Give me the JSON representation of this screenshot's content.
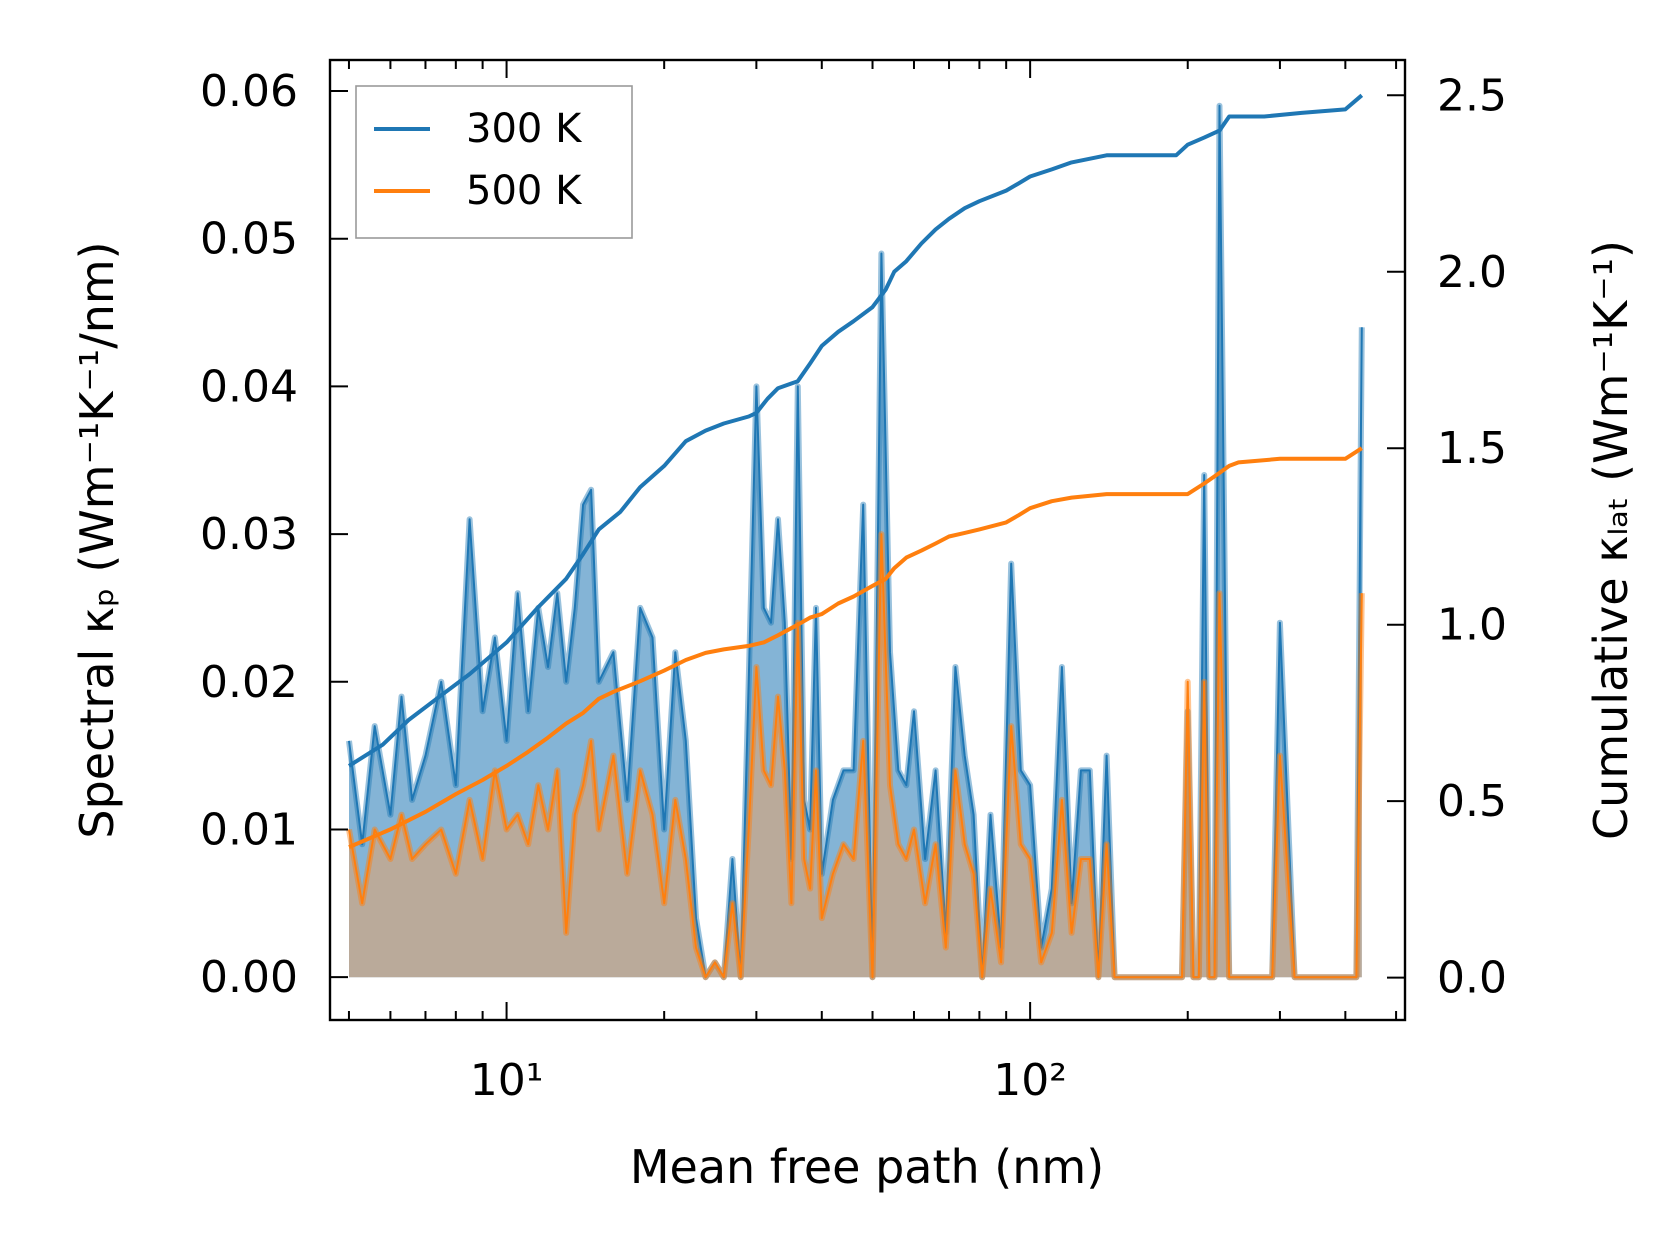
{
  "chart_data": {
    "type": "line",
    "xlabel": "Mean free path (nm)",
    "ylabel_left": "Spectral κₚ (Wm⁻¹K⁻¹/nm)",
    "ylabel_right": "Cumulative κₗₐₜ (Wm⁻¹K⁻¹)",
    "x_scale": "log",
    "xlim": [
      4.6,
      520
    ],
    "ylim_left": [
      -0.0029,
      0.0621
    ],
    "ylim_right": [
      -0.12,
      2.6
    ],
    "x_ticks": [
      {
        "value": 10,
        "label": "10¹"
      },
      {
        "value": 100,
        "label": "10²"
      }
    ],
    "y_ticks_left": [
      "0.00",
      "0.01",
      "0.02",
      "0.03",
      "0.04",
      "0.05",
      "0.06"
    ],
    "y_ticks_right": [
      "0.0",
      "0.5",
      "1.0",
      "1.5",
      "2.0",
      "2.5"
    ],
    "legend": {
      "location": "top-left",
      "entries": [
        "300 K",
        "500 K"
      ]
    },
    "series": [
      {
        "name": "300 K",
        "color": "#1f77b4",
        "fill_color": "#1f77b4",
        "axis": "right",
        "kind": "cumulative",
        "x": [
          5,
          5.8,
          6.5,
          7.5,
          8.5,
          10,
          11.5,
          13,
          14,
          15,
          16.5,
          18,
          20,
          22,
          24,
          26,
          29,
          30,
          31.5,
          33,
          36,
          38,
          40,
          43,
          46,
          50,
          53,
          55,
          58,
          62,
          66,
          70,
          75,
          80,
          90,
          95,
          100,
          110,
          120,
          140,
          190,
          200,
          215,
          230,
          240,
          280,
          330,
          400,
          430
        ],
        "values": [
          0.6,
          0.66,
          0.73,
          0.8,
          0.86,
          0.95,
          1.05,
          1.13,
          1.2,
          1.27,
          1.32,
          1.39,
          1.45,
          1.52,
          1.55,
          1.57,
          1.59,
          1.6,
          1.64,
          1.67,
          1.69,
          1.74,
          1.79,
          1.83,
          1.86,
          1.9,
          1.95,
          2.0,
          2.03,
          2.08,
          2.12,
          2.15,
          2.18,
          2.2,
          2.23,
          2.25,
          2.27,
          2.29,
          2.31,
          2.33,
          2.33,
          2.36,
          2.38,
          2.4,
          2.44,
          2.44,
          2.45,
          2.46,
          2.5
        ]
      },
      {
        "name": "300 K",
        "color": "#1f77b4",
        "fill_color": "#1f77b4",
        "axis": "left",
        "kind": "spectral",
        "x": [
          5,
          5.3,
          5.6,
          6,
          6.3,
          6.6,
          7,
          7.5,
          8,
          8.5,
          9,
          9.5,
          10,
          10.5,
          11,
          11.5,
          12,
          12.5,
          13,
          13.5,
          14,
          14.5,
          15,
          16,
          17,
          18,
          19,
          20,
          21,
          22,
          23,
          24,
          25,
          26,
          27,
          28,
          29,
          30,
          31,
          32,
          33,
          34,
          35,
          36,
          37,
          38,
          39,
          40,
          42,
          44,
          46,
          48,
          50,
          52,
          54,
          56,
          58,
          60,
          63,
          66,
          69,
          72,
          75,
          78,
          81,
          84,
          88,
          92,
          96,
          100,
          105,
          110,
          115,
          120,
          125,
          130,
          135,
          140,
          145,
          150,
          160,
          170,
          180,
          190,
          195,
          200,
          205,
          210,
          215,
          220,
          225,
          230,
          240,
          250,
          260,
          270,
          280,
          290,
          300,
          320,
          340,
          360,
          380,
          400,
          420,
          430
        ],
        "values": [
          0.016,
          0.009,
          0.017,
          0.011,
          0.019,
          0.012,
          0.015,
          0.02,
          0.013,
          0.031,
          0.018,
          0.023,
          0.016,
          0.026,
          0.018,
          0.025,
          0.021,
          0.026,
          0.02,
          0.025,
          0.032,
          0.033,
          0.02,
          0.022,
          0.012,
          0.025,
          0.023,
          0.01,
          0.022,
          0.016,
          0.004,
          0.0,
          0.001,
          0.0,
          0.008,
          0.0,
          0.02,
          0.04,
          0.025,
          0.024,
          0.031,
          0.024,
          0.008,
          0.04,
          0.012,
          0.01,
          0.025,
          0.007,
          0.012,
          0.014,
          0.014,
          0.032,
          0.0,
          0.049,
          0.022,
          0.014,
          0.013,
          0.018,
          0.008,
          0.014,
          0.003,
          0.021,
          0.015,
          0.011,
          0.0,
          0.011,
          0.002,
          0.028,
          0.014,
          0.013,
          0.002,
          0.006,
          0.021,
          0.005,
          0.014,
          0.014,
          0.0,
          0.015,
          0.0,
          0.0,
          0.0,
          0.0,
          0.0,
          0.0,
          0.0,
          0.018,
          0.0,
          0.0,
          0.034,
          0.0,
          0.0,
          0.059,
          0.0,
          0.0,
          0.0,
          0.0,
          0.0,
          0.0,
          0.024,
          0.0,
          0.0,
          0.0,
          0.0,
          0.0,
          0.0,
          0.044
        ]
      },
      {
        "name": "500 K",
        "color": "#ff7f0e",
        "fill_color": "#e8a26a",
        "axis": "right",
        "kind": "cumulative",
        "x": [
          5,
          6,
          7,
          8,
          9,
          10,
          11,
          12,
          13,
          14,
          15,
          16,
          18,
          20,
          22,
          24,
          26,
          29,
          31,
          33,
          36,
          38,
          40,
          43,
          46,
          50,
          53,
          55,
          58,
          62,
          66,
          70,
          75,
          80,
          90,
          95,
          100,
          110,
          120,
          140,
          200,
          215,
          230,
          240,
          250,
          300,
          340,
          400,
          430
        ],
        "values": [
          0.37,
          0.42,
          0.47,
          0.52,
          0.56,
          0.6,
          0.64,
          0.68,
          0.72,
          0.75,
          0.79,
          0.81,
          0.84,
          0.87,
          0.9,
          0.92,
          0.93,
          0.94,
          0.95,
          0.97,
          1.0,
          1.02,
          1.03,
          1.06,
          1.08,
          1.11,
          1.13,
          1.16,
          1.19,
          1.21,
          1.23,
          1.25,
          1.26,
          1.27,
          1.29,
          1.31,
          1.33,
          1.35,
          1.36,
          1.37,
          1.37,
          1.4,
          1.43,
          1.45,
          1.46,
          1.47,
          1.47,
          1.47,
          1.5
        ]
      },
      {
        "name": "500 K",
        "color": "#ff7f0e",
        "fill_color": "#e8a26a",
        "axis": "left",
        "kind": "spectral",
        "x": [
          5,
          5.3,
          5.6,
          6,
          6.3,
          6.6,
          7,
          7.5,
          8,
          8.5,
          9,
          9.5,
          10,
          10.5,
          11,
          11.5,
          12,
          12.5,
          13,
          13.5,
          14,
          14.5,
          15,
          16,
          17,
          18,
          19,
          20,
          21,
          22,
          23,
          24,
          25,
          26,
          27,
          28,
          29,
          30,
          31,
          32,
          33,
          34,
          35,
          36,
          37,
          38,
          39,
          40,
          42,
          44,
          46,
          48,
          50,
          52,
          54,
          56,
          58,
          60,
          63,
          66,
          69,
          72,
          75,
          78,
          81,
          84,
          88,
          92,
          96,
          100,
          105,
          110,
          115,
          120,
          125,
          130,
          135,
          140,
          145,
          150,
          160,
          170,
          180,
          190,
          195,
          200,
          205,
          210,
          215,
          220,
          225,
          230,
          240,
          250,
          260,
          270,
          280,
          290,
          300,
          320,
          340,
          360,
          380,
          400,
          420,
          430
        ],
        "values": [
          0.01,
          0.005,
          0.01,
          0.008,
          0.011,
          0.008,
          0.009,
          0.01,
          0.007,
          0.012,
          0.008,
          0.014,
          0.01,
          0.011,
          0.009,
          0.013,
          0.01,
          0.014,
          0.003,
          0.011,
          0.013,
          0.016,
          0.01,
          0.015,
          0.007,
          0.014,
          0.011,
          0.005,
          0.012,
          0.008,
          0.002,
          0.0,
          0.001,
          0.0,
          0.005,
          0.0,
          0.01,
          0.021,
          0.014,
          0.013,
          0.019,
          0.014,
          0.005,
          0.024,
          0.008,
          0.006,
          0.014,
          0.004,
          0.007,
          0.009,
          0.008,
          0.016,
          0.0,
          0.03,
          0.013,
          0.009,
          0.008,
          0.01,
          0.005,
          0.009,
          0.002,
          0.014,
          0.009,
          0.007,
          0.0,
          0.006,
          0.001,
          0.017,
          0.009,
          0.008,
          0.001,
          0.003,
          0.012,
          0.003,
          0.008,
          0.008,
          0.0,
          0.009,
          0.0,
          0.0,
          0.0,
          0.0,
          0.0,
          0.0,
          0.0,
          0.02,
          0.0,
          0.0,
          0.02,
          0.0,
          0.0,
          0.026,
          0.0,
          0.0,
          0.0,
          0.0,
          0.0,
          0.0,
          0.015,
          0.0,
          0.0,
          0.0,
          0.0,
          0.0,
          0.0,
          0.026
        ]
      }
    ]
  }
}
